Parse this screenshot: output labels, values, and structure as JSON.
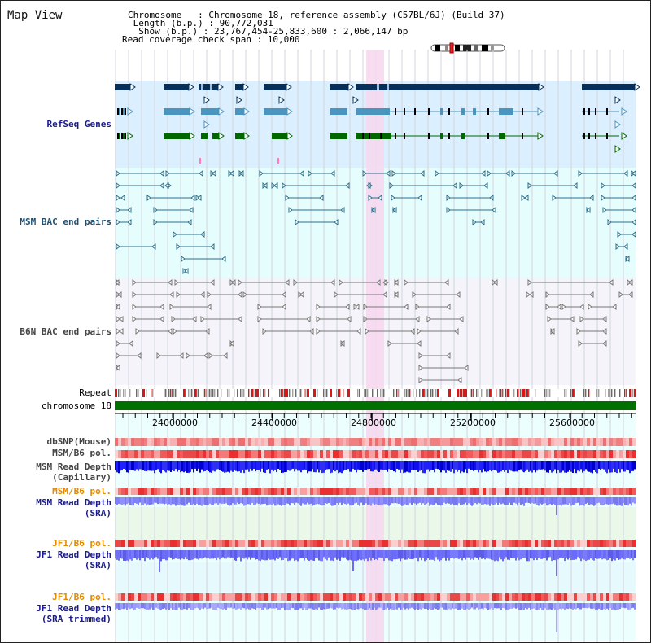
{
  "title": "Map View",
  "header": {
    "line1": "Chromosome   : Chromosome 18, reference assembly (C57BL/6J) (Build 37)",
    "line2": " Length (b.p.) : 90,772,031",
    "line3": "  Show (b.p.) : 23,767,454-25,833,600 : 2,066,147 bp",
    "line4": "Read coverage check span : 10,000"
  },
  "tracks": {
    "refseq": "RefSeq Genes",
    "msm_bac": "MSM BAC end pairs",
    "b6n_bac": "B6N BAC end pairs",
    "repeat": "Repeat",
    "chromosome": "chromosome 18",
    "dbsnp": "dbSNP(Mouse)",
    "msm_b6_pol1": "MSM/B6 pol.",
    "msm_rd_cap_1": "MSM Read Depth",
    "msm_rd_cap_2": "(Capillary)",
    "msm_b6_pol2": "MSM/B6 pol.",
    "msm_rd_sra_1": "MSM Read Depth",
    "msm_rd_sra_2": "(SRA)",
    "jf1_b6_pol1": "JF1/B6 pol.",
    "jf1_rd_sra_1": "JF1 Read Depth",
    "jf1_rd_sra_2": "(SRA)",
    "jf1_b6_pol2": "JF1/B6 pol.",
    "jf1_rd_trim_1": "JF1 Read Depth",
    "jf1_rd_trim_2": "(SRA trimmed)"
  },
  "scale": {
    "ticks": [
      "24000000",
      "24400000",
      "24800000",
      "25200000",
      "25600000"
    ]
  },
  "colors": {
    "refseq_bg": "#dcefff",
    "msm_bg": "#e6fdfd",
    "b6n_bg": "#f4f4fa",
    "highlight": "#f7d7ef",
    "gene_dark": "#06305a",
    "gene_mid": "#4a95c0",
    "gene_green": "#006600",
    "chromosome_green": "#007000",
    "depth_blue": "#1a1aff",
    "depth_light": "#8585ff"
  }
}
